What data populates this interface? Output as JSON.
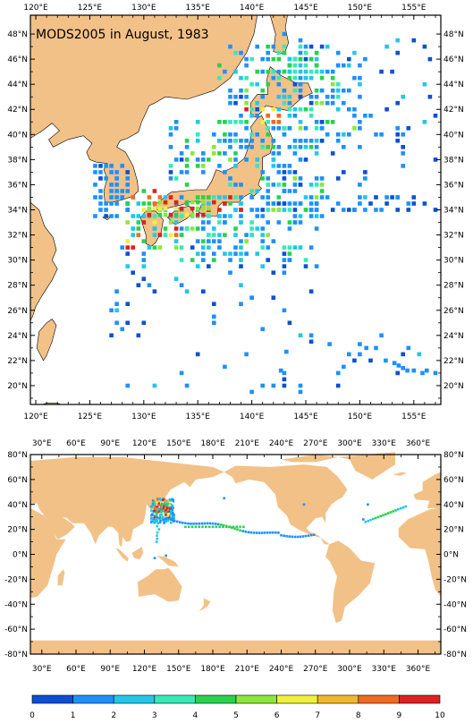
{
  "title": "MODS2005 in August, 1983",
  "colors": {
    "land": "#f2c187",
    "ocean": "#ffffff",
    "frame": "#000000",
    "scale": [
      "#0a4fd6",
      "#1e90ff",
      "#20c8e8",
      "#37e8b8",
      "#27d24d",
      "#8be83a",
      "#f0f03a",
      "#f0b82a",
      "#f06a20",
      "#e02020"
    ]
  },
  "top_map": {
    "x_labels": [
      "120°E",
      "125°E",
      "130°E",
      "135°E",
      "140°E",
      "145°E",
      "150°E",
      "155°E"
    ],
    "y_labels": [
      "48°N",
      "46°N",
      "44°N",
      "42°N",
      "40°N",
      "38°N",
      "36°N",
      "34°N",
      "32°N",
      "30°N",
      "28°N",
      "26°N",
      "24°N",
      "22°N",
      "20°N"
    ],
    "lon_range": [
      119.5,
      157.5
    ],
    "lat_range": [
      18.5,
      49.5
    ]
  },
  "world_map": {
    "top_x_labels": [
      "30°E",
      "60°E",
      "90°E",
      "120°E",
      "150°E",
      "180°E",
      "210°E",
      "240°E",
      "270°E",
      "300°E",
      "330°E",
      "360°E"
    ],
    "bottom_x_labels": [
      "30°E",
      "60°E",
      "90°E",
      "120°E",
      "150°E",
      "180°E",
      "210°E",
      "240°E",
      "270°E",
      "300°E",
      "330°E",
      "360°E"
    ],
    "y_labels": [
      "80°N",
      "60°N",
      "40°N",
      "20°N",
      "0°N",
      "-20°N",
      "-40°N",
      "-60°N",
      "-80°N"
    ],
    "lon_range": [
      20,
      380
    ],
    "lat_range": [
      -80,
      80
    ]
  },
  "colorbar": {
    "labels": [
      "0",
      "1",
      "2",
      "3",
      "4",
      "5",
      "6",
      "7",
      "8",
      "9",
      "10"
    ]
  },
  "chart_data": {
    "type": "heatmap",
    "title": "MODS2005 in August, 1983",
    "scale": [
      0,
      10
    ],
    "scale_ticks": [
      0,
      1,
      2,
      3,
      4,
      5,
      6,
      7,
      8,
      9,
      10
    ]
  }
}
